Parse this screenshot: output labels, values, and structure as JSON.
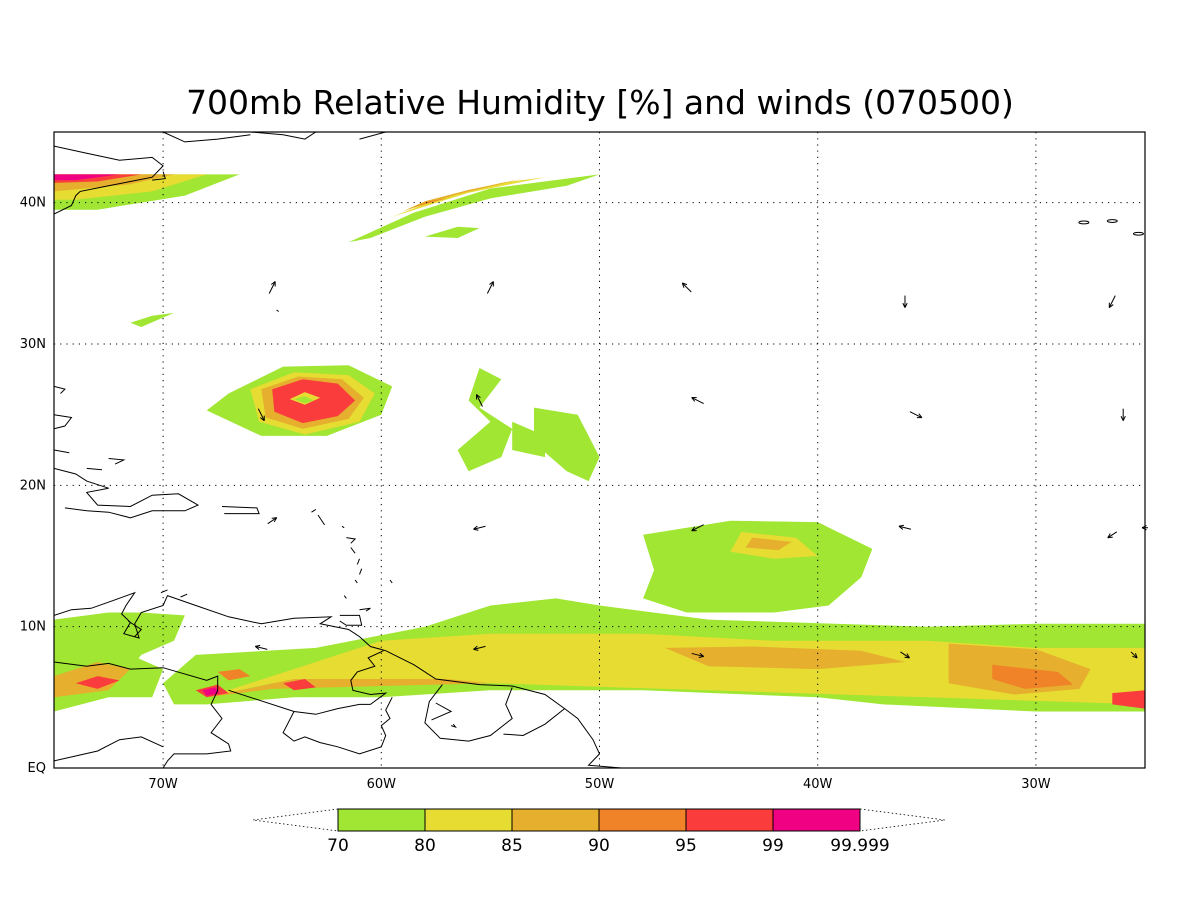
{
  "title": "700mb Relative Humidity [%] and winds (070500)",
  "map": {
    "projection": "lat-lon",
    "lon_range": [
      -75,
      -25
    ],
    "lat_range": [
      0,
      45
    ],
    "grid": "dotted",
    "lat_labels": [
      {
        "value": 40,
        "text": "40N"
      },
      {
        "value": 30,
        "text": "30N"
      },
      {
        "value": 20,
        "text": "20N"
      },
      {
        "value": 10,
        "text": "10N"
      },
      {
        "value": 0,
        "text": "EQ"
      }
    ],
    "lon_labels": [
      {
        "value": -70,
        "text": "70W"
      },
      {
        "value": -60,
        "text": "60W"
      },
      {
        "value": -50,
        "text": "50W"
      },
      {
        "value": -40,
        "text": "40W"
      },
      {
        "value": -30,
        "text": "30W"
      }
    ]
  },
  "colorbar": {
    "levels": [
      "70",
      "80",
      "85",
      "90",
      "95",
      "99",
      "99.999"
    ],
    "colors": [
      "#a0e632",
      "#e6dc32",
      "#e6af2d",
      "#f08228",
      "#fa3c3c",
      "#f00082"
    ]
  },
  "wind_vectors": [
    {
      "lon": -65,
      "lat": 34,
      "u": 1,
      "v": 2
    },
    {
      "lon": -55,
      "lat": 34,
      "u": 1,
      "v": 2
    },
    {
      "lon": -46,
      "lat": 34,
      "u": -1.5,
      "v": 1.5
    },
    {
      "lon": -36,
      "lat": 33,
      "u": 0,
      "v": -2
    },
    {
      "lon": -26.5,
      "lat": 33,
      "u": -1,
      "v": -2
    },
    {
      "lon": -65.5,
      "lat": 25,
      "u": 1,
      "v": -2
    },
    {
      "lon": -55.5,
      "lat": 26,
      "u": -1,
      "v": 2
    },
    {
      "lon": -45.5,
      "lat": 26,
      "u": -2,
      "v": 1
    },
    {
      "lon": -35.5,
      "lat": 25,
      "u": 2,
      "v": -1
    },
    {
      "lon": -26,
      "lat": 25,
      "u": 0,
      "v": -2
    },
    {
      "lon": -65,
      "lat": 17.5,
      "u": 1.5,
      "v": 1
    },
    {
      "lon": -55.5,
      "lat": 17,
      "u": -2,
      "v": -0.5
    },
    {
      "lon": -45.5,
      "lat": 17,
      "u": -2,
      "v": -1
    },
    {
      "lon": -36,
      "lat": 17,
      "u": -2,
      "v": 0.5
    },
    {
      "lon": -26.5,
      "lat": 16.5,
      "u": -1.5,
      "v": -1
    },
    {
      "lon": -25,
      "lat": 17,
      "u": -1,
      "v": 0
    },
    {
      "lon": -65.5,
      "lat": 8.5,
      "u": -2,
      "v": 0.5
    },
    {
      "lon": -55.5,
      "lat": 8.5,
      "u": -2,
      "v": -0.5
    },
    {
      "lon": -45.5,
      "lat": 8,
      "u": 2,
      "v": -0.5
    },
    {
      "lon": -36,
      "lat": 8,
      "u": 1.5,
      "v": -1
    },
    {
      "lon": -25.5,
      "lat": 8,
      "u": 1,
      "v": -1
    }
  ],
  "humidity_regions": [
    {
      "level": "70",
      "poly": [
        [
          -75,
          42
        ],
        [
          -66.5,
          42
        ],
        [
          -69,
          40.5
        ],
        [
          -73,
          39.5
        ],
        [
          -75,
          39.5
        ]
      ]
    },
    {
      "level": "80",
      "poly": [
        [
          -75,
          42
        ],
        [
          -68,
          42
        ],
        [
          -70.5,
          40.8
        ],
        [
          -74,
          40.2
        ],
        [
          -75,
          40.2
        ]
      ]
    },
    {
      "level": "85",
      "poly": [
        [
          -75,
          42
        ],
        [
          -69.5,
          42
        ],
        [
          -71.5,
          41.3
        ],
        [
          -75,
          40.8
        ]
      ]
    },
    {
      "level": "95",
      "poly": [
        [
          -75,
          42
        ],
        [
          -71,
          42
        ],
        [
          -73,
          41.5
        ],
        [
          -75,
          41.4
        ]
      ]
    },
    {
      "level": "99",
      "poly": [
        [
          -75,
          42
        ],
        [
          -72,
          42
        ],
        [
          -74,
          41.6
        ],
        [
          -75,
          41.6
        ]
      ]
    },
    {
      "level": "70",
      "poly": [
        [
          -61.5,
          37.2
        ],
        [
          -58.5,
          39.3
        ],
        [
          -55,
          41
        ],
        [
          -50,
          42
        ],
        [
          -51.5,
          41.2
        ],
        [
          -55,
          40.3
        ],
        [
          -58,
          39
        ],
        [
          -60.5,
          37.5
        ]
      ]
    },
    {
      "level": "80",
      "poly": [
        [
          -59.5,
          39
        ],
        [
          -56,
          40.7
        ],
        [
          -52.5,
          41.8
        ],
        [
          -54.5,
          41.4
        ],
        [
          -57.5,
          40.2
        ]
      ]
    },
    {
      "level": "85",
      "poly": [
        [
          -59,
          39.4
        ],
        [
          -56.5,
          40.6
        ],
        [
          -53.5,
          41.7
        ],
        [
          -56,
          40.9
        ],
        [
          -58,
          40.1
        ]
      ]
    },
    {
      "level": "90",
      "poly": [
        [
          -58.5,
          39.7
        ],
        [
          -57,
          40.3
        ],
        [
          -57.8,
          40.1
        ]
      ]
    },
    {
      "level": "70",
      "poly": [
        [
          -56.5,
          37.5
        ],
        [
          -55.5,
          38.2
        ],
        [
          -56.5,
          38.3
        ],
        [
          -58,
          37.6
        ]
      ]
    },
    {
      "level": "70",
      "poly": [
        [
          -71.5,
          31.5
        ],
        [
          -70.5,
          32
        ],
        [
          -69.5,
          32.2
        ],
        [
          -71,
          31.2
        ]
      ]
    },
    {
      "level": "70",
      "poly": [
        [
          -67,
          26.5
        ],
        [
          -64.5,
          28.4
        ],
        [
          -61.5,
          28.5
        ],
        [
          -59.5,
          27
        ],
        [
          -60,
          25
        ],
        [
          -62.5,
          23.5
        ],
        [
          -65.5,
          23.5
        ],
        [
          -68,
          25.3
        ]
      ]
    },
    {
      "level": "80",
      "poly": [
        [
          -66,
          26.8
        ],
        [
          -64,
          28
        ],
        [
          -61.5,
          27.8
        ],
        [
          -60.3,
          26.5
        ],
        [
          -61,
          24.5
        ],
        [
          -63.5,
          23.6
        ],
        [
          -65.6,
          24.5
        ]
      ]
    },
    {
      "level": "85",
      "poly": [
        [
          -65.5,
          26.8
        ],
        [
          -63.8,
          27.7
        ],
        [
          -61.8,
          27.5
        ],
        [
          -60.8,
          26.2
        ],
        [
          -61.5,
          24.7
        ],
        [
          -63.6,
          24
        ],
        [
          -65.3,
          24.8
        ]
      ]
    },
    {
      "level": "95",
      "poly": [
        [
          -65,
          26.8
        ],
        [
          -63.6,
          27.5
        ],
        [
          -62,
          27.2
        ],
        [
          -61.2,
          26
        ],
        [
          -62,
          24.9
        ],
        [
          -63.6,
          24.4
        ],
        [
          -64.9,
          25.2
        ]
      ]
    },
    {
      "level": "80",
      "poly": [
        [
          -64.2,
          26.1
        ],
        [
          -63.5,
          26.6
        ],
        [
          -62.8,
          26.2
        ],
        [
          -63.5,
          25.7
        ]
      ]
    },
    {
      "level": "70",
      "poly": [
        [
          -64,
          26.1
        ],
        [
          -63.5,
          26.3
        ],
        [
          -63.1,
          26
        ],
        [
          -63.5,
          25.8
        ]
      ]
    },
    {
      "level": "70",
      "poly": [
        [
          -55.5,
          28.3
        ],
        [
          -54.5,
          27.5
        ],
        [
          -55.5,
          25.5
        ],
        [
          -54,
          24
        ],
        [
          -54.5,
          22
        ],
        [
          -56,
          21
        ],
        [
          -56.5,
          22.5
        ],
        [
          -55,
          24.5
        ],
        [
          -56,
          26
        ]
      ]
    },
    {
      "level": "70",
      "poly": [
        [
          -53,
          25.5
        ],
        [
          -51,
          25
        ],
        [
          -50,
          22
        ],
        [
          -50.5,
          20.3
        ],
        [
          -51.5,
          21
        ],
        [
          -53,
          23
        ]
      ]
    },
    {
      "level": "70",
      "poly": [
        [
          -54,
          24.5
        ],
        [
          -52.5,
          23.5
        ],
        [
          -52.5,
          22
        ],
        [
          -54,
          22.5
        ]
      ]
    },
    {
      "level": "70",
      "poly": [
        [
          -75,
          10.5
        ],
        [
          -72.5,
          11
        ],
        [
          -71,
          11
        ],
        [
          -69,
          10.8
        ],
        [
          -69.5,
          9
        ],
        [
          -71,
          8
        ],
        [
          -72,
          6
        ],
        [
          -75,
          5
        ]
      ]
    },
    {
      "level": "70",
      "poly": [
        [
          -75,
          8
        ],
        [
          -71.5,
          8
        ],
        [
          -70,
          7
        ],
        [
          -70.5,
          5
        ],
        [
          -72.5,
          5
        ],
        [
          -75,
          4
        ]
      ]
    },
    {
      "level": "85",
      "poly": [
        [
          -75,
          6.5
        ],
        [
          -73,
          7.5
        ],
        [
          -71.5,
          7
        ],
        [
          -72.5,
          5.5
        ],
        [
          -75,
          5
        ]
      ]
    },
    {
      "level": "95",
      "poly": [
        [
          -74,
          6
        ],
        [
          -73,
          6.5
        ],
        [
          -72,
          6.2
        ],
        [
          -73,
          5.6
        ]
      ]
    },
    {
      "level": "70",
      "poly": [
        [
          -68.5,
          8
        ],
        [
          -63,
          8.5
        ],
        [
          -58,
          10
        ],
        [
          -55,
          11.5
        ],
        [
          -52,
          12
        ],
        [
          -50,
          11.5
        ],
        [
          -45,
          10.5
        ],
        [
          -35,
          10
        ],
        [
          -30,
          10.2
        ],
        [
          -25,
          10.2
        ],
        [
          -25,
          4
        ],
        [
          -30,
          4
        ],
        [
          -37,
          4.5
        ],
        [
          -40,
          5
        ],
        [
          -48,
          5.5
        ],
        [
          -55,
          5.5
        ],
        [
          -60,
          5
        ],
        [
          -64,
          5
        ],
        [
          -68,
          4.5
        ],
        [
          -69.5,
          4.5
        ],
        [
          -70,
          6
        ]
      ]
    },
    {
      "level": "70",
      "poly": [
        [
          -48,
          16.5
        ],
        [
          -44,
          17.5
        ],
        [
          -40,
          17.4
        ],
        [
          -37.5,
          15.5
        ],
        [
          -38,
          13.5
        ],
        [
          -39.5,
          11.5
        ],
        [
          -42,
          11
        ],
        [
          -46,
          11
        ],
        [
          -48,
          12
        ],
        [
          -47.5,
          14
        ]
      ]
    },
    {
      "level": "80",
      "poly": [
        [
          -60,
          9
        ],
        [
          -55,
          9.5
        ],
        [
          -48,
          9.5
        ],
        [
          -42,
          9
        ],
        [
          -35,
          9
        ],
        [
          -30,
          8.5
        ],
        [
          -25,
          8.5
        ],
        [
          -25,
          4.5
        ],
        [
          -35,
          5
        ],
        [
          -45,
          5.5
        ],
        [
          -55,
          6
        ],
        [
          -62,
          6
        ],
        [
          -65,
          6
        ],
        [
          -68,
          5
        ]
      ]
    },
    {
      "level": "80",
      "poly": [
        [
          -43.5,
          16.7
        ],
        [
          -41,
          16.3
        ],
        [
          -40,
          15
        ],
        [
          -42,
          14.8
        ],
        [
          -44,
          15.3
        ]
      ]
    },
    {
      "level": "85",
      "poly": [
        [
          -43,
          16.3
        ],
        [
          -41.2,
          16
        ],
        [
          -41.8,
          15.4
        ],
        [
          -43.3,
          15.6
        ]
      ]
    },
    {
      "level": "85",
      "poly": [
        [
          -47,
          8.5
        ],
        [
          -43,
          8.6
        ],
        [
          -38,
          8.3
        ],
        [
          -36,
          7.5
        ],
        [
          -40,
          7
        ],
        [
          -45,
          7.2
        ]
      ]
    },
    {
      "level": "85",
      "poly": [
        [
          -34,
          8.8
        ],
        [
          -30,
          8.4
        ],
        [
          -27.5,
          7
        ],
        [
          -28,
          5.6
        ],
        [
          -31,
          5.2
        ],
        [
          -34,
          6
        ]
      ]
    },
    {
      "level": "85",
      "poly": [
        [
          -64,
          6.3
        ],
        [
          -57,
          6.3
        ],
        [
          -55,
          6
        ],
        [
          -60,
          5.8
        ],
        [
          -65,
          5.6
        ],
        [
          -68,
          5
        ]
      ]
    },
    {
      "level": "90",
      "poly": [
        [
          -32,
          7.3
        ],
        [
          -29,
          6.8
        ],
        [
          -28.3,
          5.9
        ],
        [
          -30.5,
          5.6
        ],
        [
          -32,
          6.3
        ]
      ]
    },
    {
      "level": "90",
      "poly": [
        [
          -67.5,
          6.8
        ],
        [
          -66.5,
          7
        ],
        [
          -66,
          6.5
        ],
        [
          -67,
          6.2
        ]
      ]
    },
    {
      "level": "95",
      "poly": [
        [
          -68.5,
          5.5
        ],
        [
          -67.5,
          5.9
        ],
        [
          -67,
          5.3
        ],
        [
          -68,
          5
        ]
      ]
    },
    {
      "level": "95",
      "poly": [
        [
          -64.5,
          6
        ],
        [
          -63.5,
          6.3
        ],
        [
          -63,
          5.7
        ],
        [
          -64,
          5.5
        ]
      ]
    },
    {
      "level": "95",
      "poly": [
        [
          -26.5,
          5.3
        ],
        [
          -25,
          5.5
        ],
        [
          -25,
          4.2
        ],
        [
          -26.5,
          4.5
        ]
      ]
    },
    {
      "level": "99",
      "poly": [
        [
          -68.2,
          5.5
        ],
        [
          -67.6,
          5.7
        ],
        [
          -67.4,
          5.3
        ],
        [
          -68,
          5.1
        ]
      ]
    }
  ]
}
